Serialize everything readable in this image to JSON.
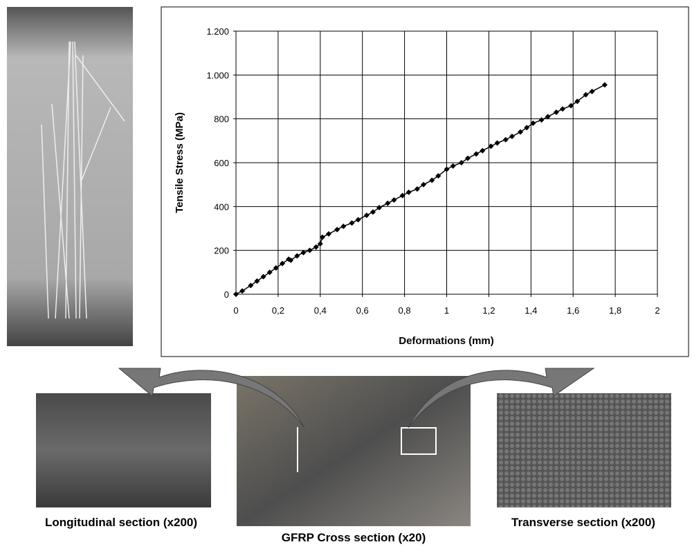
{
  "chart_data": {
    "type": "line",
    "x_label": "Deformations (mm)",
    "y_label": "Tensile Stress (MPa)",
    "color": "#000000",
    "grid": true,
    "xlim": [
      0,
      2
    ],
    "ylim": [
      0,
      1200
    ],
    "xticks": [
      0,
      {
        "value": 0.2,
        "label": "0,2"
      },
      {
        "value": 0.4,
        "label": "0,4"
      },
      {
        "value": 0.6,
        "label": "0,6"
      },
      {
        "value": 0.8,
        "label": "0,8"
      },
      1,
      {
        "value": 1.2,
        "label": "1,2"
      },
      {
        "value": 1.4,
        "label": "1,4"
      },
      {
        "value": 1.6,
        "label": "1,6"
      },
      {
        "value": 1.8,
        "label": "1,8"
      },
      2
    ],
    "yticks": [
      0,
      200,
      400,
      600,
      800,
      {
        "value": 1000,
        "label": "1.000"
      },
      {
        "value": 1200,
        "label": "1.200"
      }
    ],
    "x": [
      0,
      0.03,
      0.07,
      0.1,
      0.13,
      0.16,
      0.19,
      0.22,
      0.25,
      0.26,
      0.29,
      0.32,
      0.35,
      0.38,
      0.4,
      0.41,
      0.44,
      0.48,
      0.51,
      0.55,
      0.58,
      0.62,
      0.65,
      0.68,
      0.72,
      0.75,
      0.79,
      0.82,
      0.86,
      0.89,
      0.93,
      0.96,
      1.0,
      1.03,
      1.07,
      1.1,
      1.14,
      1.17,
      1.21,
      1.24,
      1.28,
      1.31,
      1.35,
      1.38,
      1.41,
      1.45,
      1.48,
      1.52,
      1.55,
      1.59,
      1.62,
      1.66,
      1.69,
      1.75
    ],
    "values": [
      0,
      15,
      40,
      60,
      80,
      100,
      120,
      140,
      160,
      155,
      175,
      190,
      200,
      215,
      230,
      260,
      275,
      295,
      310,
      325,
      340,
      360,
      375,
      395,
      415,
      430,
      450,
      465,
      480,
      500,
      520,
      540,
      570,
      585,
      600,
      620,
      640,
      655,
      675,
      690,
      705,
      720,
      740,
      760,
      780,
      795,
      810,
      830,
      845,
      860,
      880,
      910,
      925,
      955
    ]
  },
  "captions": {
    "longitudinal": "Longitudinal section (x200)",
    "cross": "GFRP Cross section (x20)",
    "transverse": "Transverse section (x200)"
  }
}
